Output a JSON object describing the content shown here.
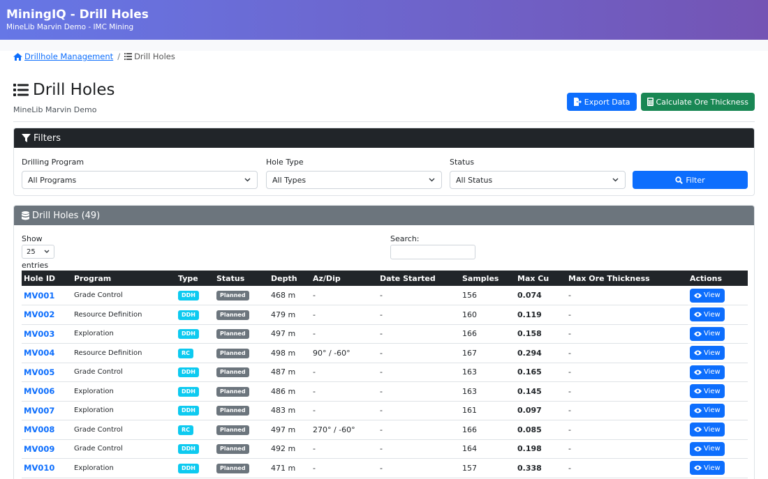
{
  "header": {
    "title": "MiningIQ - Drill Holes",
    "subtitle": "MineLib Marvin Demo - IMC Mining"
  },
  "breadcrumb": {
    "parent": "Drillhole Management",
    "separator": "/",
    "current": "Drill Holes"
  },
  "page": {
    "title": "Drill Holes",
    "subtitle": "MineLib Marvin Demo",
    "export_label": "Export Data",
    "calc_label": "Calculate Ore Thickness"
  },
  "filters": {
    "title": "Filters",
    "program_label": "Drilling Program",
    "program_value": "All Programs",
    "type_label": "Hole Type",
    "type_value": "All Types",
    "status_label": "Status",
    "status_value": "All Status",
    "filter_label": "Filter"
  },
  "holes": {
    "title": "Drill Holes (49)",
    "show_label": "Show",
    "page_size": "25",
    "entries_label": "entries",
    "search_label": "Search:",
    "columns": [
      "Hole ID",
      "Program",
      "Type",
      "Status",
      "Depth",
      "Az/Dip",
      "Date Started",
      "Samples",
      "Max Cu",
      "Max Ore Thickness",
      "Actions"
    ],
    "view_label": "View",
    "rows": [
      {
        "id": "MV001",
        "program": "Grade Control",
        "type": "DDH",
        "status": "Planned",
        "depth": "468 m",
        "azdip": "-",
        "date": "-",
        "samples": "156",
        "maxcu": "0.074",
        "thickness": "-"
      },
      {
        "id": "MV002",
        "program": "Resource Definition",
        "type": "DDH",
        "status": "Planned",
        "depth": "479 m",
        "azdip": "-",
        "date": "-",
        "samples": "160",
        "maxcu": "0.119",
        "thickness": "-"
      },
      {
        "id": "MV003",
        "program": "Exploration",
        "type": "DDH",
        "status": "Planned",
        "depth": "497 m",
        "azdip": "-",
        "date": "-",
        "samples": "166",
        "maxcu": "0.158",
        "thickness": "-"
      },
      {
        "id": "MV004",
        "program": "Resource Definition",
        "type": "RC",
        "status": "Planned",
        "depth": "498 m",
        "azdip": "90° / -60°",
        "date": "-",
        "samples": "167",
        "maxcu": "0.294",
        "thickness": "-"
      },
      {
        "id": "MV005",
        "program": "Grade Control",
        "type": "DDH",
        "status": "Planned",
        "depth": "487 m",
        "azdip": "-",
        "date": "-",
        "samples": "163",
        "maxcu": "0.165",
        "thickness": "-"
      },
      {
        "id": "MV006",
        "program": "Exploration",
        "type": "DDH",
        "status": "Planned",
        "depth": "486 m",
        "azdip": "-",
        "date": "-",
        "samples": "163",
        "maxcu": "0.145",
        "thickness": "-"
      },
      {
        "id": "MV007",
        "program": "Exploration",
        "type": "DDH",
        "status": "Planned",
        "depth": "483 m",
        "azdip": "-",
        "date": "-",
        "samples": "161",
        "maxcu": "0.097",
        "thickness": "-"
      },
      {
        "id": "MV008",
        "program": "Grade Control",
        "type": "RC",
        "status": "Planned",
        "depth": "497 m",
        "azdip": "270° / -60°",
        "date": "-",
        "samples": "166",
        "maxcu": "0.085",
        "thickness": "-"
      },
      {
        "id": "MV009",
        "program": "Grade Control",
        "type": "DDH",
        "status": "Planned",
        "depth": "492 m",
        "azdip": "-",
        "date": "-",
        "samples": "164",
        "maxcu": "0.198",
        "thickness": "-"
      },
      {
        "id": "MV010",
        "program": "Exploration",
        "type": "DDH",
        "status": "Planned",
        "depth": "471 m",
        "azdip": "-",
        "date": "-",
        "samples": "157",
        "maxcu": "0.338",
        "thickness": "-"
      }
    ]
  },
  "colors": {
    "primary": "#0d6efd",
    "success": "#198754",
    "info": "#0dcaf0",
    "secondary": "#6c757d",
    "dark": "#212529",
    "header_start": "#6677e6",
    "header_end": "#7454b4"
  },
  "icons": [
    "home-icon",
    "list-icon",
    "file-export-icon",
    "calculator-icon",
    "filter-icon",
    "search-icon",
    "database-icon",
    "eye-icon",
    "chevron-down-icon"
  ]
}
